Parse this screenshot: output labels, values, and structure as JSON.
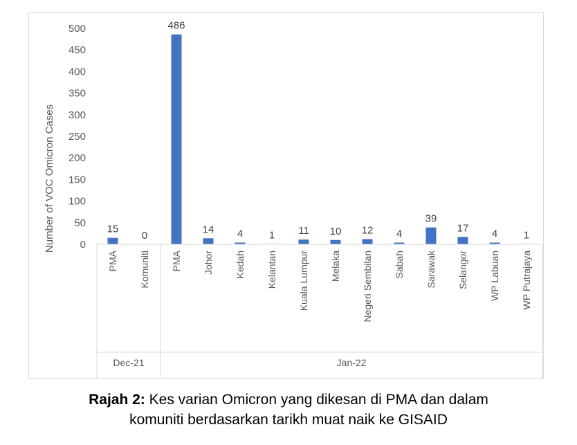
{
  "chart_data": {
    "type": "bar",
    "ylabel": "Number of VOC Omicron Cases",
    "ylim": [
      0,
      500
    ],
    "yticks": [
      0,
      50,
      100,
      150,
      200,
      250,
      300,
      350,
      400,
      450,
      500
    ],
    "groups": [
      {
        "label": "Dec-21",
        "categories": [
          "PMA",
          "Komuniti"
        ],
        "values": [
          15,
          0
        ]
      },
      {
        "label": "Jan-22",
        "categories": [
          "PMA",
          "Johor",
          "Kedah",
          "Kelantan",
          "Kuala Lumpur",
          "Melaka",
          "Negeri Sembilan",
          "Sabah",
          "Sarawak",
          "Selangor",
          "WP Labuan",
          "WP Putrajaya"
        ],
        "values": [
          486,
          14,
          4,
          1,
          11,
          10,
          12,
          4,
          39,
          17,
          4,
          1
        ]
      }
    ],
    "bar_color": "#4472c4",
    "grid": false,
    "data_labels": true
  },
  "caption": {
    "label": "Rajah 2:",
    "line1": " Kes varian Omicron yang dikesan di PMA dan dalam",
    "line2": "komuniti berdasarkan tarikh muat naik ke GISAID"
  }
}
